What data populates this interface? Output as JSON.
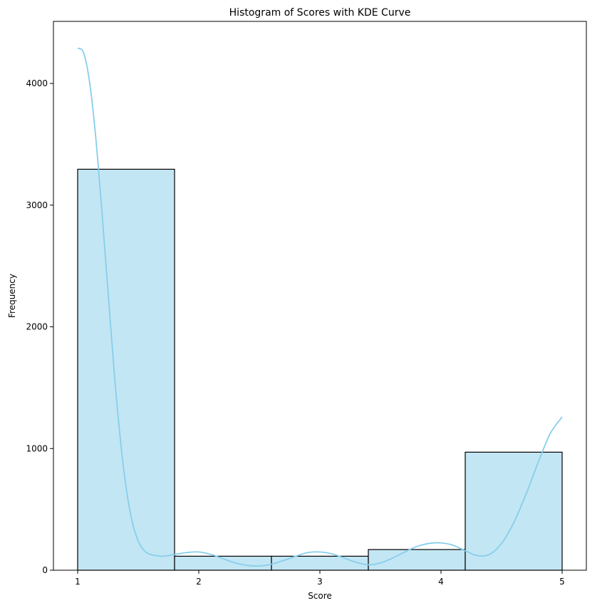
{
  "chart_data": {
    "type": "bar",
    "title": "Histogram of Scores with KDE Curve",
    "xlabel": "Score",
    "ylabel": "Frequency",
    "xlim": [
      0.8,
      5.2
    ],
    "ylim": [
      0,
      4510
    ],
    "x_ticks": [
      1,
      2,
      3,
      4,
      5
    ],
    "y_ticks": [
      0,
      1000,
      2000,
      3000,
      4000
    ],
    "bins": [
      {
        "start": 1.0,
        "end": 1.8,
        "value": 3295
      },
      {
        "start": 1.8,
        "end": 2.6,
        "value": 115
      },
      {
        "start": 2.6,
        "end": 3.4,
        "value": 115
      },
      {
        "start": 3.4,
        "end": 4.2,
        "value": 170
      },
      {
        "start": 4.2,
        "end": 5.0,
        "value": 970
      }
    ],
    "kde": {
      "x": [
        1.0,
        1.05,
        1.1,
        1.15,
        1.2,
        1.25,
        1.3,
        1.35,
        1.4,
        1.45,
        1.5,
        1.55,
        1.6,
        1.65,
        1.7,
        1.75,
        1.8,
        1.9,
        2.0,
        2.1,
        2.2,
        2.3,
        2.4,
        2.5,
        2.6,
        2.7,
        2.8,
        2.9,
        3.0,
        3.1,
        3.2,
        3.3,
        3.4,
        3.5,
        3.6,
        3.7,
        3.8,
        3.9,
        4.0,
        4.1,
        4.2,
        4.3,
        4.4,
        4.5,
        4.6,
        4.7,
        4.8,
        4.9,
        5.0
      ],
      "y": [
        4290,
        4250,
        4000,
        3550,
        2950,
        2300,
        1650,
        1100,
        680,
        400,
        240,
        160,
        130,
        120,
        115,
        120,
        130,
        145,
        150,
        130,
        95,
        60,
        40,
        35,
        50,
        80,
        115,
        145,
        150,
        135,
        100,
        65,
        45,
        60,
        100,
        150,
        195,
        220,
        225,
        205,
        160,
        120,
        130,
        220,
        390,
        620,
        880,
        1120,
        1260
      ]
    },
    "colors": {
      "bar_fill": "#c3e6f4",
      "bar_edge": "#000000",
      "kde_line": "#87ceeb"
    },
    "grid": false,
    "legend": "none"
  }
}
